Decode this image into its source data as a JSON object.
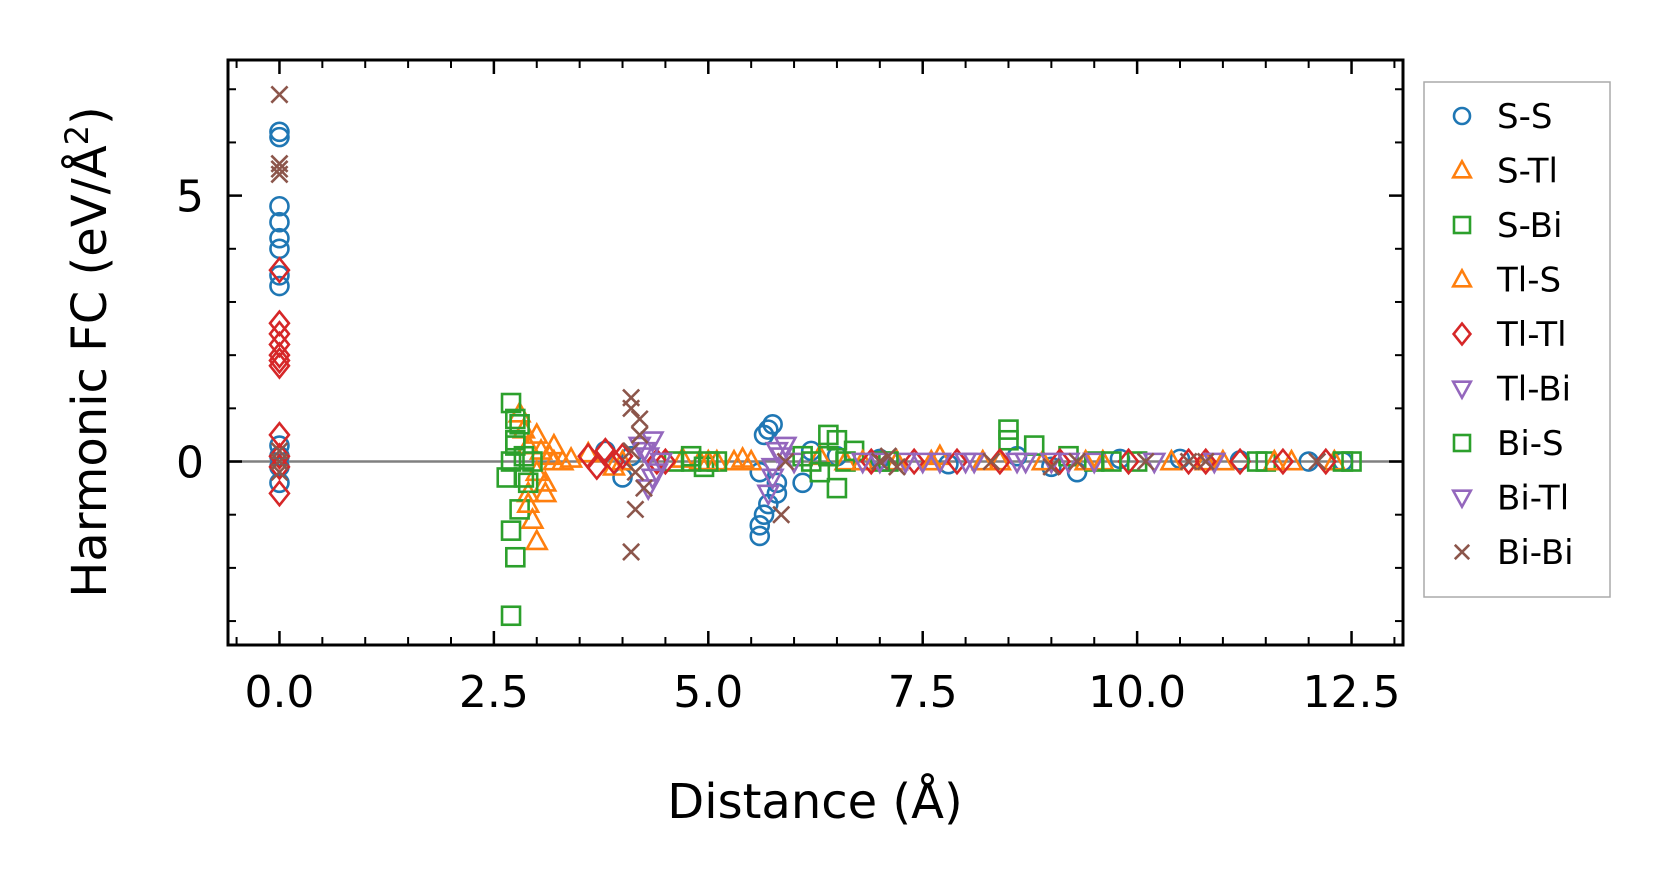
{
  "chart_data": {
    "type": "scatter",
    "xlabel": "Distance (Å)",
    "ylabel": "Harmonic FC (eV/Å",
    "ylabel_sup": "2",
    "ylabel_close": ")",
    "xlim": [
      -0.6,
      13.1
    ],
    "ylim": [
      -3.45,
      7.55
    ],
    "xticks": [
      0.0,
      2.5,
      5.0,
      7.5,
      10.0,
      12.5
    ],
    "xtick_labels": [
      "0.0",
      "2.5",
      "5.0",
      "7.5",
      "10.0",
      "12.5"
    ],
    "yticks": [
      0,
      5
    ],
    "ytick_labels": [
      "0",
      "5"
    ],
    "grid": false,
    "zero_line": true,
    "legend_position": "outside-right",
    "series": [
      {
        "name": "S-S",
        "marker": "circle",
        "color": "#1f77b4",
        "points": [
          [
            0,
            6.2
          ],
          [
            0,
            6.1
          ],
          [
            0,
            4.8
          ],
          [
            0,
            4.5
          ],
          [
            0,
            4.2
          ],
          [
            0,
            4.0
          ],
          [
            0,
            3.5
          ],
          [
            0,
            3.3
          ],
          [
            0,
            0.3
          ],
          [
            0,
            0.1
          ],
          [
            0,
            -0.1
          ],
          [
            0,
            -0.4
          ],
          [
            3.8,
            0.2
          ],
          [
            4.0,
            -0.3
          ],
          [
            4.1,
            0.1
          ],
          [
            5.6,
            -1.4
          ],
          [
            5.6,
            -1.2
          ],
          [
            5.65,
            -1.0
          ],
          [
            5.7,
            -0.8
          ],
          [
            5.7,
            0.6
          ],
          [
            5.75,
            0.7
          ],
          [
            5.65,
            0.5
          ],
          [
            5.8,
            -0.6
          ],
          [
            5.8,
            -0.4
          ],
          [
            5.6,
            -0.2
          ],
          [
            6.1,
            -0.4
          ],
          [
            6.2,
            0.2
          ],
          [
            6.5,
            0.1
          ],
          [
            7.0,
            0.05
          ],
          [
            7.8,
            -0.05
          ],
          [
            8.6,
            0.1
          ],
          [
            9.0,
            -0.1
          ],
          [
            9.3,
            -0.2
          ],
          [
            9.8,
            0.05
          ],
          [
            10.5,
            0.05
          ],
          [
            11.2,
            0.02
          ],
          [
            12.0,
            0.0
          ],
          [
            12.4,
            0.0
          ]
        ]
      },
      {
        "name": "S-Tl",
        "marker": "triangle-up",
        "color": "#ff7f0e",
        "points": [
          [
            2.8,
            0.9
          ],
          [
            2.85,
            0.6
          ],
          [
            2.9,
            -0.6
          ],
          [
            2.95,
            -1.1
          ],
          [
            3.0,
            -1.5
          ],
          [
            2.9,
            0.3
          ],
          [
            3.0,
            -0.2
          ],
          [
            3.05,
            0.2
          ],
          [
            3.1,
            -0.4
          ],
          [
            3.15,
            0.1
          ],
          [
            3.2,
            0.0
          ],
          [
            3.3,
            0.0
          ],
          [
            3.6,
            0.15
          ],
          [
            3.9,
            -0.1
          ],
          [
            4.7,
            0.05
          ],
          [
            4.9,
            0.0
          ],
          [
            5.1,
            0.0
          ],
          [
            5.3,
            0.0
          ],
          [
            5.5,
            0.0
          ],
          [
            6.3,
            0.1
          ],
          [
            6.6,
            0.0
          ],
          [
            7.2,
            0.0
          ],
          [
            7.7,
            0.1
          ],
          [
            8.2,
            0.0
          ],
          [
            8.9,
            0.0
          ],
          [
            9.6,
            0.0
          ],
          [
            10.4,
            0.0
          ],
          [
            11.0,
            0.0
          ],
          [
            11.8,
            0.0
          ],
          [
            12.3,
            0.0
          ]
        ]
      },
      {
        "name": "S-Bi",
        "marker": "square",
        "color": "#2ca02c",
        "points": [
          [
            2.7,
            -2.9
          ],
          [
            2.75,
            -1.8
          ],
          [
            2.7,
            1.1
          ],
          [
            2.75,
            0.8
          ],
          [
            2.8,
            0.7
          ],
          [
            2.7,
            -1.3
          ],
          [
            2.8,
            -0.9
          ],
          [
            2.65,
            -0.3
          ],
          [
            2.75,
            0.3
          ],
          [
            2.85,
            0.1
          ],
          [
            2.9,
            -0.4
          ],
          [
            2.7,
            0.0
          ],
          [
            4.6,
            0.0
          ],
          [
            4.8,
            0.1
          ],
          [
            4.95,
            -0.1
          ],
          [
            5.1,
            0.0
          ],
          [
            6.1,
            0.1
          ],
          [
            6.3,
            -0.2
          ],
          [
            6.4,
            0.5
          ],
          [
            6.5,
            0.4
          ],
          [
            6.5,
            -0.5
          ],
          [
            6.6,
            0.0
          ],
          [
            6.7,
            0.2
          ],
          [
            7.0,
            0.0
          ],
          [
            8.5,
            0.6
          ],
          [
            8.5,
            0.4
          ],
          [
            8.8,
            0.3
          ],
          [
            9.2,
            0.1
          ],
          [
            9.5,
            0.0
          ],
          [
            10.0,
            0.0
          ],
          [
            11.5,
            0.0
          ],
          [
            12.4,
            0.0
          ]
        ]
      },
      {
        "name": "Tl-S",
        "marker": "triangle-up",
        "color": "#ff7f0e",
        "points": [
          [
            2.9,
            -0.8
          ],
          [
            3.0,
            0.5
          ],
          [
            3.1,
            -0.6
          ],
          [
            3.2,
            0.3
          ],
          [
            3.4,
            0.05
          ],
          [
            4.0,
            0.0
          ],
          [
            5.0,
            0.0
          ],
          [
            5.4,
            0.05
          ],
          [
            6.8,
            0.0
          ],
          [
            7.6,
            0.0
          ],
          [
            8.4,
            0.0
          ],
          [
            9.4,
            0.0
          ],
          [
            10.8,
            0.0
          ],
          [
            11.6,
            0.0
          ]
        ]
      },
      {
        "name": "Tl-Tl",
        "marker": "diamond",
        "color": "#d62728",
        "points": [
          [
            0,
            3.6
          ],
          [
            0,
            2.6
          ],
          [
            0,
            2.4
          ],
          [
            0,
            2.2
          ],
          [
            0,
            2.0
          ],
          [
            0,
            1.9
          ],
          [
            0,
            1.8
          ],
          [
            0,
            0.5
          ],
          [
            0,
            0.1
          ],
          [
            0,
            -0.1
          ],
          [
            0,
            -0.6
          ],
          [
            3.6,
            0.1
          ],
          [
            3.7,
            -0.1
          ],
          [
            3.8,
            0.2
          ],
          [
            3.9,
            0.0
          ],
          [
            4.0,
            0.1
          ],
          [
            4.4,
            0.0
          ],
          [
            4.5,
            0.0
          ],
          [
            6.9,
            0.0
          ],
          [
            7.4,
            0.0
          ],
          [
            7.9,
            0.0
          ],
          [
            8.4,
            0.0
          ],
          [
            9.1,
            0.0
          ],
          [
            9.9,
            0.0
          ],
          [
            10.6,
            0.0
          ],
          [
            10.8,
            0.0
          ],
          [
            11.2,
            0.0
          ],
          [
            11.7,
            0.0
          ],
          [
            12.2,
            0.0
          ]
        ]
      },
      {
        "name": "Tl-Bi",
        "marker": "triangle-down",
        "color": "#9467bd",
        "points": [
          [
            4.2,
            0.3
          ],
          [
            4.3,
            -0.5
          ],
          [
            4.35,
            0.4
          ],
          [
            4.4,
            -0.2
          ],
          [
            4.3,
            0.1
          ],
          [
            5.7,
            -0.6
          ],
          [
            5.75,
            -0.3
          ],
          [
            5.8,
            0.2
          ],
          [
            5.9,
            0.3
          ],
          [
            6.0,
            0.0
          ],
          [
            6.8,
            0.0
          ],
          [
            7.3,
            0.0
          ],
          [
            7.7,
            0.0
          ],
          [
            8.0,
            0.0
          ],
          [
            8.6,
            0.0
          ],
          [
            9.0,
            0.0
          ],
          [
            9.5,
            0.0
          ],
          [
            10.2,
            0.0
          ],
          [
            10.9,
            0.0
          ]
        ]
      },
      {
        "name": "Bi-S",
        "marker": "square",
        "color": "#2ca02c",
        "points": [
          [
            2.75,
            0.4
          ],
          [
            2.85,
            -0.3
          ],
          [
            2.95,
            0.0
          ],
          [
            4.8,
            0.0
          ],
          [
            5.0,
            0.0
          ],
          [
            6.2,
            0.0
          ],
          [
            6.4,
            0.1
          ],
          [
            7.1,
            0.0
          ],
          [
            9.7,
            0.0
          ],
          [
            11.4,
            0.0
          ],
          [
            12.5,
            0.0
          ]
        ]
      },
      {
        "name": "Bi-Tl",
        "marker": "triangle-down",
        "color": "#9467bd",
        "points": [
          [
            4.25,
            0.2
          ],
          [
            4.35,
            -0.3
          ],
          [
            4.45,
            0.0
          ],
          [
            5.75,
            -0.1
          ],
          [
            5.85,
            0.1
          ],
          [
            7.0,
            0.0
          ],
          [
            7.5,
            0.0
          ],
          [
            8.1,
            0.0
          ],
          [
            8.7,
            0.0
          ],
          [
            9.2,
            0.0
          ]
        ]
      },
      {
        "name": "Bi-Bi",
        "marker": "x",
        "color": "#8c564b",
        "points": [
          [
            0,
            6.9
          ],
          [
            0,
            5.6
          ],
          [
            0,
            5.5
          ],
          [
            0,
            5.4
          ],
          [
            0,
            0.2
          ],
          [
            0,
            0.0
          ],
          [
            0,
            -0.2
          ],
          [
            4.1,
            1.2
          ],
          [
            4.1,
            1.0
          ],
          [
            4.1,
            -1.7
          ],
          [
            4.15,
            -0.9
          ],
          [
            4.2,
            0.8
          ],
          [
            4.2,
            0.5
          ],
          [
            4.25,
            -0.5
          ],
          [
            4.1,
            0.2
          ],
          [
            4.15,
            -0.2
          ],
          [
            5.85,
            -1.0
          ],
          [
            5.9,
            0.0
          ],
          [
            7.0,
            0.0
          ],
          [
            7.1,
            0.1
          ],
          [
            7.2,
            -0.1
          ],
          [
            8.3,
            0.0
          ],
          [
            9.0,
            -0.1
          ],
          [
            9.3,
            0.0
          ],
          [
            10.1,
            0.0
          ],
          [
            10.6,
            0.0
          ],
          [
            10.8,
            0.0
          ],
          [
            12.1,
            0.0
          ]
        ]
      }
    ]
  }
}
